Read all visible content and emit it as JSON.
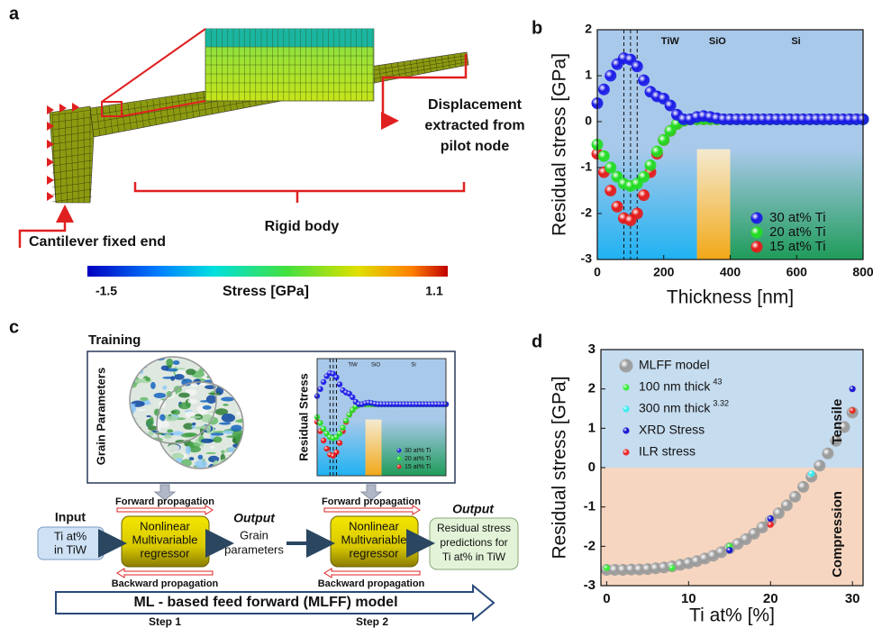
{
  "panel_a": {
    "label": "a",
    "displacement_text": [
      "Displacement",
      "extracted from",
      "pilot node"
    ],
    "rigid_body": "Rigid body",
    "fixed_end": "Cantilever fixed end",
    "colorbar": {
      "min": "-1.5",
      "title": "Stress [GPa]",
      "max": "1.1"
    }
  },
  "panel_c": {
    "label": "c",
    "training": "Training",
    "grain_parameters": "Grain Parameters",
    "inset_ylabel": "Residual Stress",
    "input_title": "Input",
    "input_box": [
      "Ti at%",
      "in TiW"
    ],
    "forward": "Forward propagation",
    "backward": "Backward propagation",
    "regressor": [
      "Nonlinear",
      "Multivariable",
      "regressor"
    ],
    "output_title": "Output",
    "output1": [
      "Grain",
      "parameters"
    ],
    "output2": [
      "Residual stress",
      "predictions for",
      "Ti at% in TiW"
    ],
    "model": "ML - based feed forward (MLFF) model",
    "step1": "Step 1",
    "step2": "Step 2"
  },
  "chart_data": [
    {
      "type": "scatter",
      "panel_label": "b",
      "x_label": "Thickness [nm]",
      "y_label": "Residual stress [GPa]",
      "region_labels": [
        "TiW",
        "SiO",
        "Si"
      ],
      "xlim": [
        0,
        800
      ],
      "ylim": [
        -3,
        2
      ],
      "xticks": [
        0,
        200,
        400,
        600,
        800
      ],
      "yticks": [
        -3,
        -2,
        -1,
        0,
        1,
        2
      ],
      "legend": "lower right",
      "x": [
        0,
        20,
        40,
        60,
        80,
        100,
        120,
        140,
        160,
        180,
        200,
        220,
        240,
        260,
        280,
        300,
        320,
        340,
        360,
        380,
        400,
        420,
        440,
        460,
        480,
        500,
        520,
        540,
        560,
        580,
        600,
        620,
        640,
        660,
        680,
        700,
        720,
        740,
        760,
        780,
        800
      ],
      "series": [
        {
          "name": "30 at% Ti",
          "color": "#1a1ae6",
          "values": [
            0.4,
            0.7,
            1.0,
            1.25,
            1.38,
            1.35,
            1.2,
            0.9,
            0.65,
            0.55,
            0.5,
            0.35,
            0.15,
            0.05,
            0.05,
            0.1,
            0.12,
            0.1,
            0.07,
            0.05,
            0.05,
            0.05,
            0.05,
            0.05,
            0.05,
            0.05,
            0.05,
            0.05,
            0.05,
            0.05,
            0.05,
            0.05,
            0.05,
            0.05,
            0.05,
            0.05,
            0.05,
            0.05,
            0.05,
            0.05,
            0.05
          ]
        },
        {
          "name": "20 at% Ti",
          "color": "#22dd22",
          "values": [
            -0.5,
            -0.75,
            -1.0,
            -1.2,
            -1.35,
            -1.4,
            -1.35,
            -1.2,
            -0.95,
            -0.65,
            -0.4,
            -0.2,
            -0.05,
            0.02,
            0.05,
            0.05,
            0.05,
            0.05,
            0.05,
            0.05,
            0.05,
            0.05,
            0.05,
            0.05,
            0.05,
            0.05,
            0.05,
            0.05,
            0.05,
            0.05,
            0.05,
            0.05,
            0.05,
            0.05,
            0.05,
            0.05,
            0.05,
            0.05,
            0.05,
            0.05,
            0.05
          ]
        },
        {
          "name": "15 at% Ti",
          "color": "#e61a1a",
          "values": [
            -0.7,
            -1.1,
            -1.5,
            -1.85,
            -2.1,
            -2.15,
            -2.0,
            -1.6,
            -1.1,
            -0.7,
            -0.4,
            -0.2,
            -0.05,
            0.02,
            0.05,
            0.05,
            0.05,
            0.05,
            0.05,
            0.05,
            0.05,
            0.05,
            0.05,
            0.05,
            0.05,
            0.05,
            0.05,
            0.05,
            0.05,
            0.05,
            0.05,
            0.05,
            0.05,
            0.05,
            0.05,
            0.05,
            0.05,
            0.05,
            0.05,
            0.05,
            0.05
          ]
        }
      ]
    },
    {
      "type": "scatter",
      "panel_label": "d",
      "x_label": "Ti at% [%]",
      "y_label": "Residual stress [GPa]",
      "annotations": [
        "Tensile",
        "Compression"
      ],
      "xlim": [
        -0.7,
        31.3
      ],
      "ylim": [
        -3,
        3
      ],
      "xticks": [
        0,
        10,
        20,
        30
      ],
      "yticks": [
        -3,
        -2,
        -1,
        0,
        1,
        2,
        3
      ],
      "legend": "upper left",
      "series": [
        {
          "name": "MLFF model",
          "color": "#9a9a9a",
          "x": [
            0,
            1,
            2,
            3,
            4,
            5,
            6,
            7,
            8,
            9,
            10,
            11,
            12,
            13,
            14,
            15,
            16,
            17,
            18,
            19,
            20,
            21,
            22,
            23,
            24,
            25,
            26,
            27,
            28,
            29,
            30
          ],
          "values": [
            -2.6,
            -2.6,
            -2.6,
            -2.59,
            -2.59,
            -2.58,
            -2.56,
            -2.54,
            -2.51,
            -2.47,
            -2.43,
            -2.38,
            -2.31,
            -2.24,
            -2.15,
            -2.05,
            -1.94,
            -1.82,
            -1.68,
            -1.52,
            -1.35,
            -1.16,
            -0.96,
            -0.74,
            -0.49,
            -0.23,
            0.05,
            0.36,
            0.68,
            1.03,
            1.4
          ]
        },
        {
          "name": "100 nm thick",
          "superscript": "43",
          "color": "#33ee33",
          "x": [
            0,
            8,
            15,
            30
          ],
          "values": [
            -2.55,
            -2.55,
            -2.0,
            1.45
          ]
        },
        {
          "name": "300 nm thick",
          "superscript": "3.32",
          "color": "#33eeee",
          "x": [
            25
          ],
          "values": [
            -0.15
          ]
        },
        {
          "name": "XRD Stress",
          "color": "#1010d0",
          "x": [
            15,
            20,
            30
          ],
          "values": [
            -2.1,
            -1.3,
            2.0
          ]
        },
        {
          "name": "ILR stress",
          "color": "#ee2222",
          "x": [
            20,
            30
          ],
          "values": [
            -1.45,
            1.45
          ]
        }
      ]
    }
  ]
}
